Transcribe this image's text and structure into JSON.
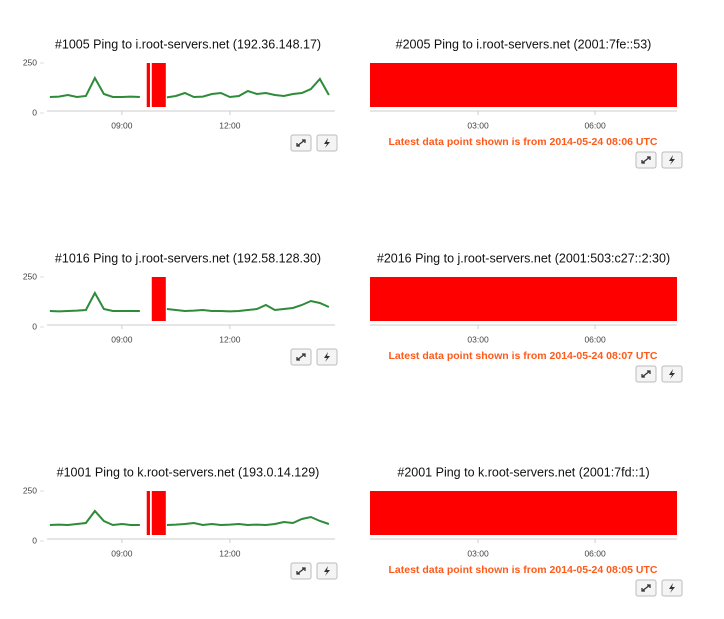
{
  "panels": [
    {
      "title": "#1005 Ping to i.root-servers.net (192.36.148.17)",
      "chart": {
        "type": "line",
        "color": "#2e8b3a",
        "outage_color": "#ff0000",
        "ylim": [
          0,
          250
        ],
        "yticks": [
          0,
          250
        ],
        "xlim": [
          6.92,
          14.92
        ],
        "xticks": [
          {
            "value": 9,
            "label": "09:00"
          },
          {
            "value": 12,
            "label": "12:00"
          }
        ],
        "x": [
          7,
          7.25,
          7.5,
          7.75,
          8,
          8.25,
          8.5,
          8.75,
          9,
          9.25,
          9.5,
          9.75,
          10,
          10.25,
          10.5,
          10.75,
          11,
          11.25,
          11.5,
          11.75,
          12,
          12.25,
          12.5,
          12.75,
          13,
          13.25,
          13.5,
          13.75,
          14,
          14.25,
          14.5,
          14.75
        ],
        "values": [
          80,
          82,
          90,
          80,
          85,
          175,
          95,
          80,
          80,
          82,
          80,
          null,
          null,
          78,
          85,
          100,
          80,
          82,
          95,
          100,
          80,
          85,
          110,
          95,
          100,
          90,
          85,
          95,
          100,
          120,
          170,
          90
        ],
        "outages": [
          [
            9.69,
            9.78
          ],
          [
            9.83,
            10.22
          ]
        ]
      }
    },
    {
      "title": "#2005 Ping to i.root-servers.net (2001:7fe::53)",
      "chart": {
        "type": "outage",
        "outage_color": "#ff0000",
        "xlim": [
          0.23,
          8.1
        ],
        "xticks": [
          {
            "value": 3,
            "label": "03:00"
          },
          {
            "value": 6,
            "label": "06:00"
          }
        ],
        "outages": [
          [
            0.23,
            8.1
          ]
        ]
      },
      "warning": "Latest data point shown is from 2014-05-24 08:06 UTC"
    },
    {
      "title": "#1016 Ping to j.root-servers.net (192.58.128.30)",
      "chart": {
        "type": "line",
        "color": "#2e8b3a",
        "outage_color": "#ff0000",
        "ylim": [
          0,
          250
        ],
        "yticks": [
          0,
          250
        ],
        "xlim": [
          6.92,
          14.92
        ],
        "xticks": [
          {
            "value": 9,
            "label": "09:00"
          },
          {
            "value": 12,
            "label": "12:00"
          }
        ],
        "x": [
          7,
          7.25,
          7.5,
          7.75,
          8,
          8.25,
          8.5,
          8.75,
          9,
          9.25,
          9.5,
          9.75,
          10,
          10.25,
          10.5,
          10.75,
          11,
          11.25,
          11.5,
          11.75,
          12,
          12.25,
          12.5,
          12.75,
          13,
          13.25,
          13.5,
          13.75,
          14,
          14.25,
          14.5,
          14.75
        ],
        "values": [
          80,
          78,
          80,
          82,
          85,
          170,
          90,
          80,
          80,
          80,
          80,
          null,
          null,
          90,
          85,
          80,
          82,
          85,
          80,
          80,
          78,
          80,
          85,
          90,
          110,
          85,
          90,
          95,
          110,
          130,
          120,
          100
        ],
        "outages": [
          [
            9.83,
            10.22
          ]
        ]
      }
    },
    {
      "title": "#2016 Ping to j.root-servers.net (2001:503:c27::2:30)",
      "chart": {
        "type": "outage",
        "outage_color": "#ff0000",
        "xlim": [
          0.23,
          8.1
        ],
        "xticks": [
          {
            "value": 3,
            "label": "03:00"
          },
          {
            "value": 6,
            "label": "06:00"
          }
        ],
        "outages": [
          [
            0.23,
            8.1
          ]
        ]
      },
      "warning": "Latest data point shown is from 2014-05-24 08:07 UTC"
    },
    {
      "title": "#1001 Ping to k.root-servers.net (193.0.14.129)",
      "chart": {
        "type": "line",
        "color": "#2e8b3a",
        "outage_color": "#ff0000",
        "ylim": [
          0,
          250
        ],
        "yticks": [
          0,
          250
        ],
        "xlim": [
          6.92,
          14.92
        ],
        "xticks": [
          {
            "value": 9,
            "label": "09:00"
          },
          {
            "value": 12,
            "label": "12:00"
          }
        ],
        "x": [
          7,
          7.25,
          7.5,
          7.75,
          8,
          8.25,
          8.5,
          8.75,
          9,
          9.25,
          9.5,
          9.75,
          10,
          10.25,
          10.5,
          10.75,
          11,
          11.25,
          11.5,
          11.75,
          12,
          12.25,
          12.5,
          12.75,
          13,
          13.25,
          13.5,
          13.75,
          14,
          14.25,
          14.5,
          14.75
        ],
        "values": [
          80,
          82,
          80,
          85,
          90,
          150,
          100,
          80,
          85,
          80,
          80,
          null,
          null,
          80,
          82,
          85,
          90,
          80,
          85,
          80,
          82,
          85,
          80,
          82,
          80,
          85,
          95,
          90,
          110,
          120,
          100,
          85
        ],
        "outages": [
          [
            9.69,
            9.78
          ],
          [
            9.83,
            10.22
          ]
        ]
      }
    },
    {
      "title": "#2001 Ping to k.root-servers.net (2001:7fd::1)",
      "chart": {
        "type": "outage",
        "outage_color": "#ff0000",
        "xlim": [
          0.23,
          8.1
        ],
        "xticks": [
          {
            "value": 3,
            "label": "03:00"
          },
          {
            "value": 6,
            "label": "06:00"
          }
        ],
        "outages": [
          [
            0.23,
            8.1
          ]
        ]
      },
      "warning": "Latest data point shown is from 2014-05-24 08:05 UTC"
    }
  ]
}
